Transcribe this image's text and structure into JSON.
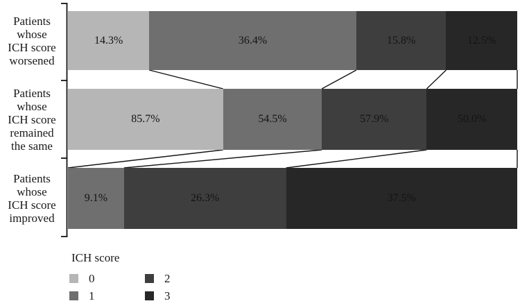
{
  "chart_data": {
    "type": "bar",
    "subtype": "horizontal-100pct-stacked-mosaic-with-connectors",
    "title": "",
    "categories": [
      {
        "name": "Patients whose ICH score worsened",
        "lines": [
          "Patients",
          "whose",
          "ICH score",
          "worsened"
        ]
      },
      {
        "name": "Patients whose ICH score remained the same",
        "lines": [
          "Patients",
          "whose",
          "ICH score",
          "remained",
          "the same"
        ]
      },
      {
        "name": "Patients whose ICH score improved",
        "lines": [
          "Patients",
          "whose",
          "ICH score",
          "improved"
        ]
      }
    ],
    "series": [
      {
        "name": "0",
        "color": "#b6b6b6",
        "values": [
          14.3,
          85.7,
          0
        ]
      },
      {
        "name": "1",
        "color": "#6f6f6f",
        "values": [
          36.4,
          54.5,
          9.1
        ]
      },
      {
        "name": "2",
        "color": "#3e3e3e",
        "values": [
          15.8,
          57.9,
          26.3
        ]
      },
      {
        "name": "3",
        "color": "#272727",
        "values": [
          12.5,
          50.0,
          37.5
        ]
      }
    ],
    "value_format": {
      "decimals": 1,
      "suffix": "%"
    },
    "legend": {
      "title": "ICH score",
      "position": "bottom-left",
      "entries": [
        {
          "label": "0",
          "color": "#b6b6b6"
        },
        {
          "label": "1",
          "color": "#6f6f6f"
        },
        {
          "label": "2",
          "color": "#3e3e3e"
        },
        {
          "label": "3",
          "color": "#272727"
        }
      ]
    },
    "axis": {
      "line_color": "#141414",
      "connector_color": "#141414"
    },
    "layout_notes": "segment width equals value share of row total; connector lines join cumulative score boundaries between adjacent bars"
  }
}
